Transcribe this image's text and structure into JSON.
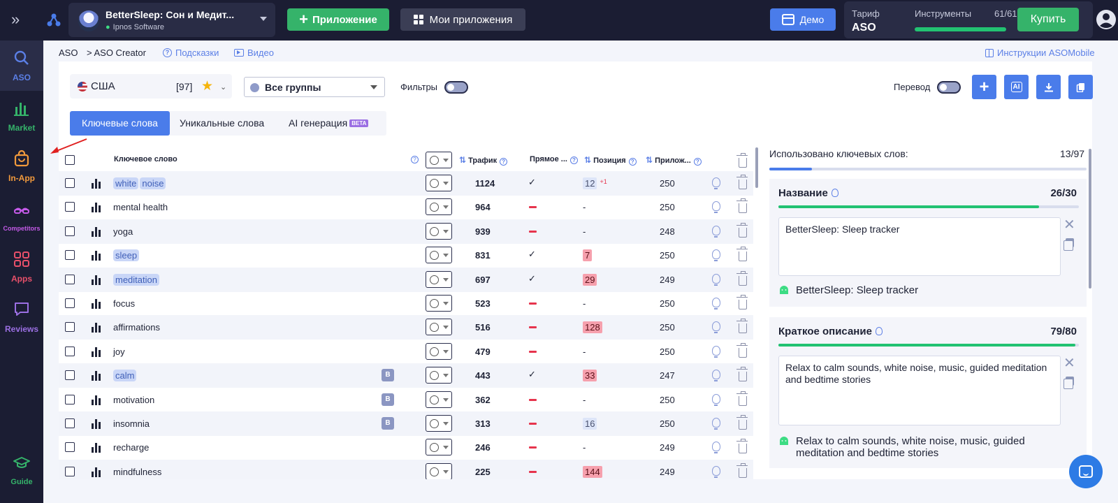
{
  "topbar": {
    "app_name": "BetterSleep: Сон и Медит...",
    "developer": "Ipnos Software",
    "add_app_label": "Приложение",
    "my_apps_label": "Мои приложения",
    "demo_label": "Демо",
    "tariff_label": "Тариф",
    "tariff_value": "ASO",
    "tools_label": "Инструменты",
    "tools_count": "61/61",
    "tools_progress": 1.0,
    "buy_label": "Купить"
  },
  "sidebar": {
    "items": [
      {
        "label": "ASO",
        "icon": "search-icon",
        "color": "#5b7fe6"
      },
      {
        "label": "Market",
        "icon": "bar-chart-icon",
        "color": "#35b36a"
      },
      {
        "label": "In-App",
        "icon": "bag-icon",
        "color": "#f29a3c"
      },
      {
        "label": "Competitors",
        "icon": "glasses-icon",
        "color": "#c45ae8"
      },
      {
        "label": "Apps",
        "icon": "apps-grid-icon",
        "color": "#e8506a"
      },
      {
        "label": "Reviews",
        "icon": "chat-icon",
        "color": "#9b6fe3"
      }
    ],
    "guide_label": "Guide"
  },
  "breadcrumb": {
    "root": "ASO",
    "current": "> ASO Creator",
    "hints": "Подсказки",
    "video": "Видео",
    "instructions": "Инструкции ASOMobile"
  },
  "toolbar": {
    "country": "США",
    "country_count": "[97]",
    "group": "Все группы",
    "filters_label": "Фильтры",
    "translate_label": "Перевод",
    "ai_label": "AI"
  },
  "tabs": [
    {
      "label": "Ключевые слова",
      "active": true
    },
    {
      "label": "Уникальные слова",
      "active": false
    },
    {
      "label": "AI генерация",
      "active": false,
      "badge": "BETA"
    }
  ],
  "table": {
    "headers": {
      "keyword": "Ключевое слово",
      "traffic": "Трафик",
      "direct": "Прямое ...",
      "position": "Позиция",
      "apps": "Прилож..."
    },
    "rows": [
      {
        "words": [
          "white",
          "noise"
        ],
        "highlighted": true,
        "badge": "",
        "traffic": "1124",
        "direct": "check",
        "position": "12",
        "pos_style": "blue",
        "delta": "+1",
        "apps": "250"
      },
      {
        "words": [
          "mental health"
        ],
        "highlighted": false,
        "badge": "",
        "traffic": "964",
        "direct": "dash",
        "position": "-",
        "pos_style": "none",
        "delta": "",
        "apps": "250"
      },
      {
        "words": [
          "yoga"
        ],
        "highlighted": false,
        "badge": "",
        "traffic": "939",
        "direct": "dash",
        "position": "-",
        "pos_style": "none",
        "delta": "",
        "apps": "248"
      },
      {
        "words": [
          "sleep"
        ],
        "highlighted": true,
        "badge": "",
        "traffic": "831",
        "direct": "check",
        "position": "7",
        "pos_style": "red",
        "delta": "",
        "apps": "250"
      },
      {
        "words": [
          "meditation"
        ],
        "highlighted": true,
        "badge": "",
        "traffic": "697",
        "direct": "check",
        "position": "29",
        "pos_style": "red",
        "delta": "",
        "apps": "249"
      },
      {
        "words": [
          "focus"
        ],
        "highlighted": false,
        "badge": "",
        "traffic": "523",
        "direct": "dash",
        "position": "-",
        "pos_style": "none",
        "delta": "",
        "apps": "250"
      },
      {
        "words": [
          "affirmations"
        ],
        "highlighted": false,
        "badge": "",
        "traffic": "516",
        "direct": "dash",
        "position": "128",
        "pos_style": "red",
        "delta": "",
        "apps": "250"
      },
      {
        "words": [
          "joy"
        ],
        "highlighted": false,
        "badge": "",
        "traffic": "479",
        "direct": "dash",
        "position": "-",
        "pos_style": "none",
        "delta": "",
        "apps": "250"
      },
      {
        "words": [
          "calm"
        ],
        "highlighted": true,
        "badge": "B",
        "traffic": "443",
        "direct": "check",
        "position": "33",
        "pos_style": "red",
        "delta": "",
        "apps": "247"
      },
      {
        "words": [
          "motivation"
        ],
        "highlighted": false,
        "badge": "B",
        "traffic": "362",
        "direct": "dash",
        "position": "-",
        "pos_style": "none",
        "delta": "",
        "apps": "250"
      },
      {
        "words": [
          "insomnia"
        ],
        "highlighted": false,
        "badge": "B",
        "traffic": "313",
        "direct": "dash",
        "position": "16",
        "pos_style": "blue",
        "delta": "",
        "apps": "250"
      },
      {
        "words": [
          "recharge"
        ],
        "highlighted": false,
        "badge": "",
        "traffic": "246",
        "direct": "dash",
        "position": "-",
        "pos_style": "none",
        "delta": "",
        "apps": "249"
      },
      {
        "words": [
          "mindfulness"
        ],
        "highlighted": false,
        "badge": "",
        "traffic": "225",
        "direct": "dash",
        "position": "144",
        "pos_style": "red",
        "delta": "",
        "apps": "249"
      }
    ]
  },
  "right_panel": {
    "used_label": "Использовано ключевых слов:",
    "used_count": "13/97",
    "used_progress": 0.134,
    "title_card": {
      "label": "Название",
      "count": "26/30",
      "progress": 0.867,
      "value": "BetterSleep: Sleep tracker",
      "current": "BetterSleep: Sleep tracker"
    },
    "short_desc_card": {
      "label": "Краткое описание",
      "count": "79/80",
      "progress": 0.988,
      "value": "Relax to calm sounds, white noise, music, guided meditation and bedtime stories",
      "current": "Relax to calm sounds, white noise, music, guided meditation and bedtime stories"
    }
  },
  "colors": {
    "accent": "#4a7cea",
    "success": "#35b36a",
    "danger": "#e6344d",
    "nav_bg": "#1b1d33"
  }
}
